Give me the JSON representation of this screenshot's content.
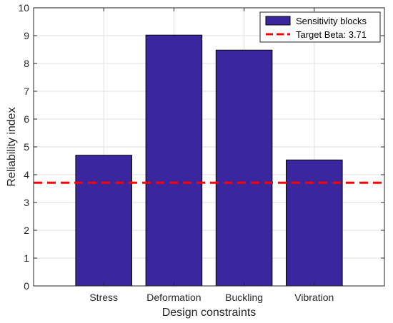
{
  "chart_data": {
    "type": "bar",
    "categories": [
      "Stress",
      "Deformation",
      "Buckling",
      "Vibration"
    ],
    "series": [
      {
        "name": "Sensitivity blocks",
        "values": [
          4.7,
          9.02,
          8.48,
          4.53
        ]
      }
    ],
    "reference_line": {
      "label": "Target Beta: 3.71",
      "value": 3.71,
      "style": "dashed"
    },
    "title": "",
    "xlabel": "Design constraints",
    "ylabel": "Reliability index",
    "ylim": [
      0,
      10
    ],
    "xlim": [
      0,
      5
    ],
    "yticks": [
      "0",
      "1",
      "2",
      "3",
      "4",
      "5",
      "6",
      "7",
      "8",
      "9",
      "10"
    ],
    "grid": true,
    "legend_position": "top-right",
    "colors": {
      "bar": "#3a27a0",
      "bar_edge": "#000000",
      "reference_line": "#ff0000",
      "grid": "#dfdfdf",
      "axis": "#262626"
    }
  }
}
